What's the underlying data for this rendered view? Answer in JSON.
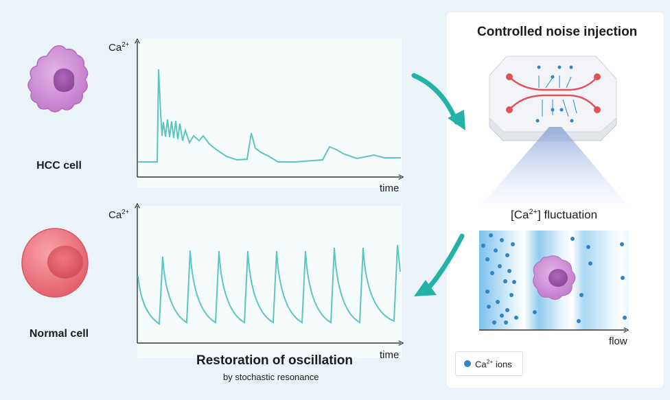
{
  "cells": {
    "hcc_label": "HCC cell",
    "normal_label": "Normal cell"
  },
  "top_plot": {
    "ylabel_base": "Ca",
    "ylabel_sup": "2+",
    "xlabel": "time"
  },
  "bottom_plot": {
    "ylabel_base": "Ca",
    "ylabel_sup": "2+",
    "xlabel": "time"
  },
  "right_panel": {
    "title": "Controlled noise injection",
    "fluctuation_pre": "[Ca",
    "fluctuation_sup": "2+",
    "fluctuation_post": "] fluctuation",
    "flow_label": "flow",
    "legend_base": "Ca",
    "legend_sup": "2+",
    "legend_post": " ions"
  },
  "caption": {
    "title": "Restoration of oscillation",
    "subtitle": "by stochastic resonance"
  },
  "colors": {
    "trace": "#5cc6bd",
    "arrow": "#24b2a6",
    "ion": "#2e86c8",
    "channel": "#e0505a",
    "hcc_cell": "#c77fd0",
    "normal_cell": "#ec6f7a"
  }
}
